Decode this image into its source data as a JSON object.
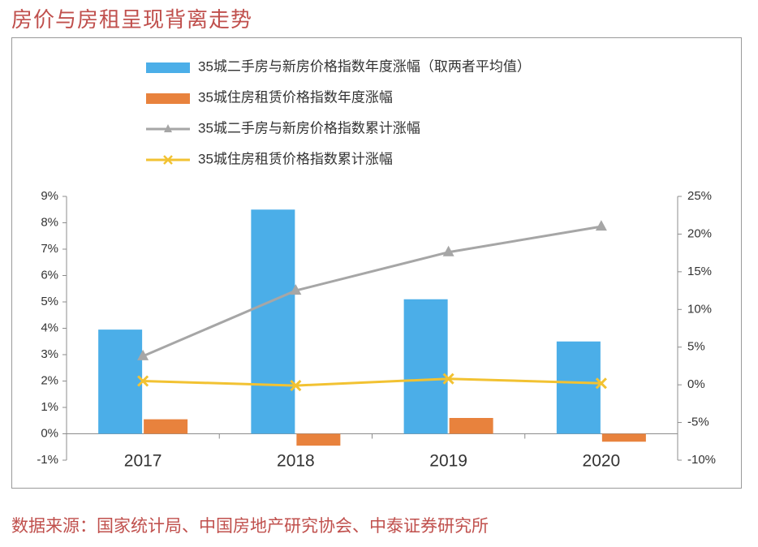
{
  "header": {
    "title": "房价与房租呈现背离走势"
  },
  "footer": {
    "source": "数据来源：国家统计局、中国房地产研究协会、中泰证券研究所"
  },
  "colors": {
    "bar_price": "#4baee8",
    "bar_rent": "#e8823d",
    "line_price": "#a6a6a6",
    "line_rent": "#f2c232",
    "axis": "#8c8c8c",
    "text": "#333333"
  },
  "chart_data": {
    "type": "bar",
    "categories": [
      "2017",
      "2018",
      "2019",
      "2020"
    ],
    "legend_position": "top",
    "grid": false,
    "left_axis": {
      "ylim": [
        -1,
        9
      ],
      "ticks": [
        "-1%",
        "0%",
        "1%",
        "2%",
        "3%",
        "4%",
        "5%",
        "6%",
        "7%",
        "8%",
        "9%"
      ]
    },
    "right_axis": {
      "ylim": [
        -10,
        25
      ],
      "ticks": [
        "-10%",
        "-5%",
        "0%",
        "5%",
        "10%",
        "15%",
        "20%",
        "25%"
      ]
    },
    "series": [
      {
        "name": "35城二手房与新房价格指数年度涨幅（取两者平均值）",
        "type": "bar",
        "axis": "left",
        "values": [
          3.95,
          8.5,
          5.1,
          3.5
        ]
      },
      {
        "name": "35城住房租赁价格指数年度涨幅",
        "type": "bar",
        "axis": "left",
        "values": [
          0.55,
          -0.45,
          0.6,
          -0.3
        ]
      },
      {
        "name": "35城二手房与新房价格指数累计涨幅",
        "type": "line",
        "marker": "triangle",
        "axis": "right",
        "values": [
          3.8,
          12.5,
          17.6,
          21.0
        ]
      },
      {
        "name": "35城住房租赁价格指数累计涨幅",
        "type": "line",
        "marker": "x",
        "axis": "right",
        "values": [
          0.5,
          -0.1,
          0.8,
          0.2
        ]
      }
    ]
  }
}
